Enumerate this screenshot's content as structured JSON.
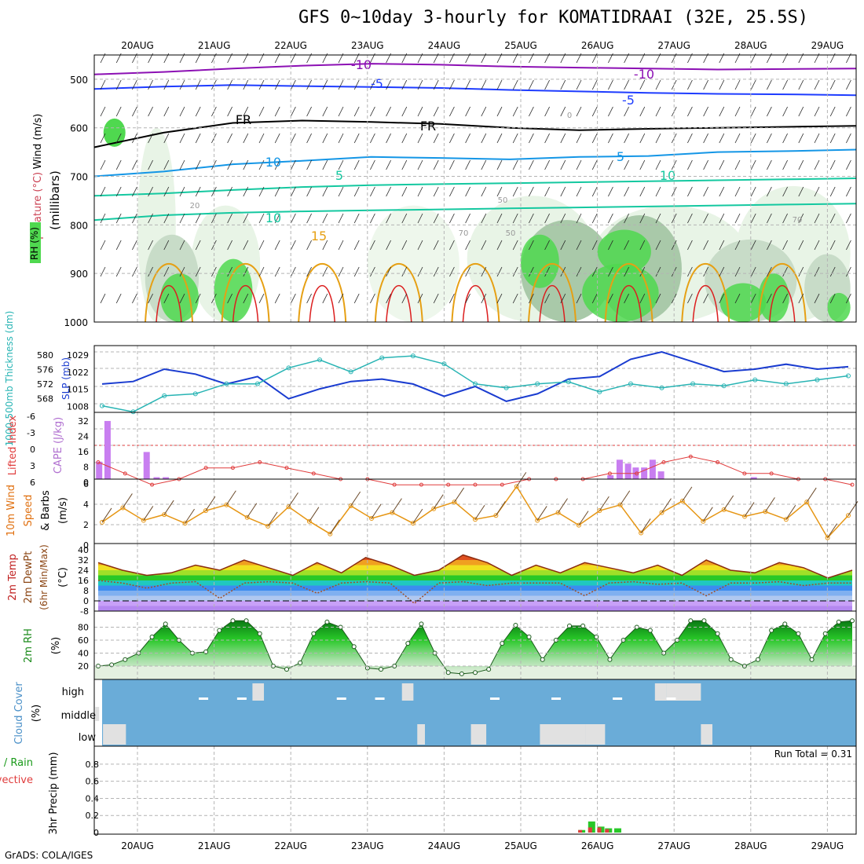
{
  "title": "GFS 0~10day 3-hourly for KOMATIDRAAI (32E, 25.5S)",
  "footer": "GrADS: COLA/IGES",
  "colors": {
    "purple": "#8c10b4",
    "blue": "#1e3cff",
    "lightblue": "#1496e6",
    "teal": "#14c8a0",
    "orange": "#e6a014",
    "red": "#dc1e1e",
    "green": "#28d228",
    "lightgreen": "#96e696",
    "slp": "#1a3cd0",
    "thick": "#28b4b4",
    "cape": "#c87ef0",
    "li": "#e03c3c",
    "wind": "#e69614",
    "barb": "#000000",
    "temp": "#8b2c10",
    "dew": "#a05028",
    "rh": "#1ea01e",
    "cloud": "#6aacd8",
    "cloudfill": "#e1e1e1",
    "precip_total": "#28c828",
    "precip_conv": "#e03c3c"
  },
  "time_axis": {
    "dates": [
      "20AUG",
      "21AUG",
      "22AUG",
      "23AUG",
      "24AUG",
      "25AUG",
      "26AUG",
      "27AUG",
      "28AUG",
      "29AUG"
    ]
  },
  "chart_data": [
    {
      "type": "heatmap",
      "id": "upper_air",
      "ylabel_parts": [
        "Wind (m/s)",
        "Temperature (°C)",
        "RH (%)",
        "(millibars)"
      ],
      "y_ticks": [
        "500",
        "600",
        "700",
        "800",
        "900",
        "1000"
      ],
      "contour_labels": [
        "-10",
        "-10",
        "-5",
        "-5",
        "FR",
        "FR",
        "-10",
        "5",
        "5",
        "10",
        "10",
        "15",
        "20",
        "50",
        "50",
        "70",
        "70",
        "0"
      ],
      "isotherms": [
        {
          "label": "-10",
          "color": "purple",
          "values": [
            490,
            485,
            478,
            472,
            468,
            470,
            474,
            476,
            478,
            480,
            479,
            478
          ]
        },
        {
          "label": "-5",
          "color": "blue",
          "values": [
            520,
            515,
            512,
            514,
            516,
            518,
            522,
            525,
            528,
            530,
            531,
            533
          ]
        },
        {
          "label": "FR",
          "color": "black",
          "values": [
            640,
            610,
            590,
            585,
            588,
            592,
            600,
            605,
            602,
            600,
            598,
            596
          ]
        },
        {
          "label": "5",
          "color": "lightblue",
          "values": [
            700,
            690,
            675,
            668,
            660,
            662,
            665,
            660,
            658,
            650,
            648,
            645
          ]
        },
        {
          "label": "10",
          "color": "teal",
          "values": [
            740,
            735,
            728,
            722,
            718,
            716,
            714,
            712,
            710,
            708,
            706,
            704
          ]
        },
        {
          "label": "15",
          "color": "teal",
          "values": [
            790,
            780,
            775,
            772,
            770,
            768,
            766,
            764,
            762,
            760,
            758,
            756
          ]
        }
      ]
    },
    {
      "type": "line",
      "id": "slp_thickness",
      "left_label": "1000-500mb Thickness (dm)",
      "right_label": "SLP (mb)",
      "left_ticks": [
        "580",
        "576",
        "572",
        "568"
      ],
      "right_ticks": [
        "1029",
        "1022",
        "1015",
        "1008"
      ],
      "series": [
        {
          "key": "slp",
          "values": [
            1016,
            1017,
            1022,
            1020,
            1016,
            1019,
            1010,
            1014,
            1017,
            1018,
            1016,
            1011,
            1015,
            1009,
            1012,
            1018,
            1019,
            1026,
            1029,
            1025,
            1021,
            1022,
            1024,
            1022,
            1023
          ]
        },
        {
          "key": "thick",
          "values": [
            566.5,
            565,
            569,
            569.5,
            572,
            572,
            576,
            578,
            575,
            578.5,
            579,
            577,
            572,
            571,
            572,
            572.5,
            570,
            572,
            571,
            572,
            571.5,
            573,
            572,
            573,
            574
          ]
        }
      ]
    },
    {
      "type": "bar",
      "id": "cape_li",
      "left_label": "Lifted Index",
      "right_label": "CAPE (J/kg)",
      "li_ticks": [
        "-6",
        "-3",
        "0",
        "3",
        "6"
      ],
      "cape_ticks": [
        "32",
        "24",
        "16",
        "8",
        "0"
      ],
      "cape_values": [
        {
          "day": 0.05,
          "v": 9
        },
        {
          "day": 0.16,
          "v": 30
        },
        {
          "day": 0.67,
          "v": 14
        },
        {
          "day": 0.8,
          "v": 1
        },
        {
          "day": 0.92,
          "v": 1
        },
        {
          "day": 6.72,
          "v": 2
        },
        {
          "day": 6.84,
          "v": 10
        },
        {
          "day": 6.95,
          "v": 8
        },
        {
          "day": 7.05,
          "v": 6
        },
        {
          "day": 7.16,
          "v": 6
        },
        {
          "day": 7.27,
          "v": 10
        },
        {
          "day": 7.38,
          "v": 4
        },
        {
          "day": 8.59,
          "v": 1
        }
      ],
      "li_values": [
        3,
        5,
        7,
        6,
        4,
        4,
        3,
        4,
        5,
        6,
        6,
        7,
        7,
        7,
        7,
        7,
        6,
        6,
        6,
        5,
        5,
        3,
        2,
        3,
        5,
        5,
        6,
        6,
        7
      ]
    },
    {
      "type": "line",
      "id": "wind10m",
      "ylabel": "10m Wind Speed & Barbs (m/s)",
      "y_ticks": [
        "6",
        "4",
        "2",
        "0"
      ],
      "values": [
        2.2,
        3.7,
        2.4,
        3.0,
        2.1,
        3.4,
        4.0,
        2.7,
        1.8,
        3.8,
        2.3,
        1.0,
        3.9,
        2.6,
        3.2,
        2.1,
        3.6,
        4.3,
        2.5,
        2.9,
        5.9,
        2.4,
        3.2,
        1.9,
        3.4,
        4.0,
        1.1,
        3.2,
        4.4,
        2.3,
        3.5,
        2.8,
        3.3,
        2.5,
        4.3,
        0.6,
        2.9
      ]
    },
    {
      "type": "area",
      "id": "temp_dew",
      "ylabel": "2m Temp 2m DewPt (6hr Min/Max) (°C)",
      "y_ticks": [
        "40",
        "32",
        "24",
        "16",
        "8",
        "0",
        "-8"
      ],
      "temp_values": [
        30,
        24,
        20,
        22,
        28,
        24,
        32,
        26,
        20,
        30,
        22,
        34,
        28,
        20,
        24,
        36,
        30,
        20,
        28,
        22,
        30,
        26,
        22,
        28,
        20,
        32,
        24,
        22,
        30,
        26,
        18,
        24
      ],
      "dew_values": [
        16,
        14,
        10,
        14,
        15,
        2,
        14,
        15,
        14,
        6,
        14,
        15,
        14,
        -2,
        14,
        15,
        12,
        14,
        14,
        14,
        4,
        14,
        15,
        13,
        14,
        4,
        14,
        14,
        15,
        12,
        14,
        14
      ]
    },
    {
      "type": "area",
      "id": "rh2m",
      "ylabel": "2m RH (%)",
      "y_ticks": [
        "80",
        "60",
        "40",
        "20"
      ],
      "values": [
        20,
        22,
        30,
        40,
        65,
        85,
        60,
        40,
        42,
        75,
        90,
        90,
        70,
        20,
        15,
        25,
        70,
        88,
        80,
        50,
        17,
        15,
        20,
        55,
        85,
        40,
        10,
        8,
        10,
        15,
        55,
        83,
        65,
        30,
        60,
        82,
        82,
        65,
        30,
        60,
        80,
        75,
        40,
        60,
        90,
        90,
        70,
        30,
        20,
        30,
        75,
        85,
        70,
        30,
        70,
        88,
        90
      ]
    },
    {
      "type": "bar",
      "id": "cloud",
      "ylabel": "Cloud Cover (%)",
      "levels": [
        "high",
        "middle",
        "low"
      ]
    },
    {
      "type": "bar",
      "id": "precip",
      "ylabel": "3hr Precip (mm)",
      "left_label1": "Total / Rain",
      "left_label2": "Convective",
      "y_ticks": [
        "0.8",
        "0.6",
        "0.4",
        "0.2",
        "0"
      ],
      "run_total": "Run Total = 0.31",
      "values": [
        {
          "day": 6.2,
          "total": 0.03,
          "conv": 0.03
        },
        {
          "day": 6.33,
          "total": 0.13,
          "conv": 0.06
        },
        {
          "day": 6.45,
          "total": 0.07,
          "conv": 0.06
        },
        {
          "day": 6.55,
          "total": 0.05,
          "conv": 0.04
        },
        {
          "day": 6.67,
          "total": 0.05,
          "conv": 0.0
        }
      ]
    }
  ]
}
